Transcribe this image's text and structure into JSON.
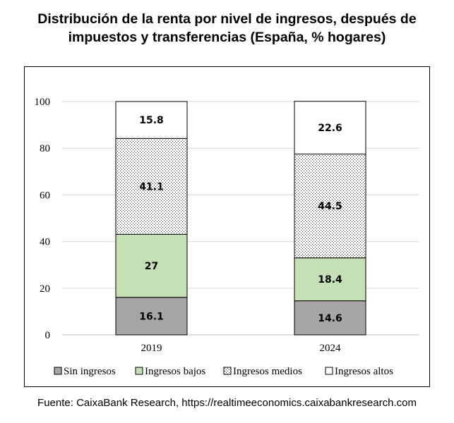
{
  "title_line1": "Distribución de la renta por nivel de ingresos, después de",
  "title_line2": "impuestos y transferencias (España, % hogares)",
  "source": "Fuente: CaixaBank Research, https://realtimeeconomics.caixabankresearch.com",
  "chart_data": {
    "type": "bar",
    "stacked": true,
    "categories": [
      "2019",
      "2024"
    ],
    "series": [
      {
        "name": "Sin ingresos",
        "values": [
          16.1,
          14.6
        ],
        "labels": [
          "16.1",
          "14.6"
        ],
        "color": "#a6a6a6",
        "pattern": "solid"
      },
      {
        "name": "Ingresos bajos",
        "values": [
          27,
          18.4
        ],
        "labels": [
          "27",
          "18.4"
        ],
        "color": "#c5e0b4",
        "pattern": "solid"
      },
      {
        "name": "Ingresos medios",
        "values": [
          41.1,
          44.5
        ],
        "labels": [
          "41.1",
          "44.5"
        ],
        "color": "#ffffff",
        "pattern": "dotted"
      },
      {
        "name": "Ingresos altos",
        "values": [
          15.8,
          22.6
        ],
        "labels": [
          "15.8",
          "22.6"
        ],
        "color": "#ffffff",
        "pattern": "solid"
      }
    ],
    "ylim": [
      0,
      100
    ],
    "yticks": [
      "0",
      "20",
      "40",
      "60",
      "80",
      "100"
    ],
    "grid": true,
    "legend": "bottom"
  }
}
